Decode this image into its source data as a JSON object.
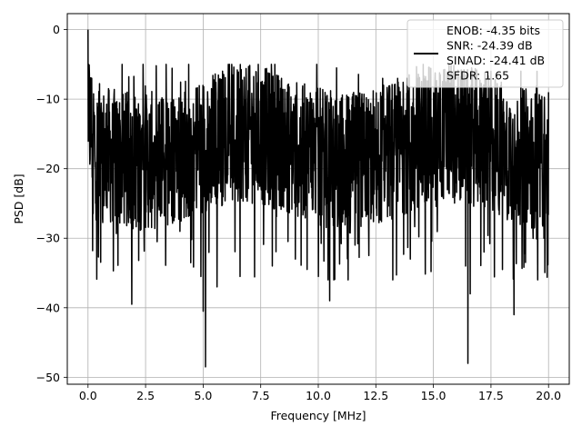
{
  "chart_data": {
    "type": "line",
    "xlabel": "Frequency [MHz]",
    "ylabel": "PSD [dB]",
    "xlim": [
      -0.9,
      20.9
    ],
    "ylim": [
      -51.0,
      2.3
    ],
    "xticks": [
      0.0,
      2.5,
      5.0,
      7.5,
      10.0,
      12.5,
      15.0,
      17.5,
      20.0
    ],
    "xtick_labels": [
      "0.0",
      "2.5",
      "5.0",
      "7.5",
      "10.0",
      "12.5",
      "15.0",
      "17.5",
      "20.0"
    ],
    "yticks": [
      0,
      -10,
      -20,
      -30,
      -40,
      -50
    ],
    "ytick_labels": [
      "0",
      "−10",
      "−20",
      "−30",
      "−40",
      "−50"
    ],
    "grid": true,
    "legend_position": "top-right",
    "legend_lines": [
      "ENOB: -4.35 bits",
      "SNR: -24.39 dB",
      "SINAD: -24.41 dB",
      "SFDR: 1.65"
    ],
    "series": [
      {
        "color": "#000000",
        "x_range": [
          0.0,
          20.0
        ],
        "samples": 2000,
        "description_of_values": "noise-like PSD trace",
        "values": [
          [
            0.0,
            0.0
          ],
          [
            0.04,
            -10.5
          ],
          [
            0.1,
            -14.0
          ],
          [
            0.2,
            -31.8
          ],
          [
            0.3,
            -18.0
          ],
          [
            0.38,
            -35.9
          ],
          [
            0.6,
            -13.5
          ],
          [
            1.1,
            -34.7
          ],
          [
            1.3,
            -33.9
          ],
          [
            1.4,
            -14.0
          ],
          [
            1.9,
            -39.5
          ],
          [
            2.2,
            -33.2
          ],
          [
            2.4,
            -9.5
          ],
          [
            3.0,
            -30.5
          ],
          [
            3.4,
            -10.0
          ],
          [
            4.2,
            -9.0
          ],
          [
            4.5,
            -30.2
          ],
          [
            4.9,
            -35.5
          ],
          [
            5.0,
            -40.5
          ],
          [
            5.1,
            -48.5
          ],
          [
            5.6,
            -37.0
          ],
          [
            5.7,
            -7.2
          ],
          [
            6.6,
            -35.5
          ],
          [
            7.4,
            -8.0
          ],
          [
            8.0,
            -34.0
          ],
          [
            8.4,
            -7.0
          ],
          [
            9.0,
            -33.0
          ],
          [
            10.0,
            -35.5
          ],
          [
            10.5,
            -39.0
          ],
          [
            10.8,
            -5.5
          ],
          [
            11.6,
            -31.0
          ],
          [
            12.2,
            -32.5
          ],
          [
            12.8,
            -7.0
          ],
          [
            14.0,
            -33.0
          ],
          [
            14.9,
            -34.8
          ],
          [
            15.3,
            -6.5
          ],
          [
            16.4,
            -34.0
          ],
          [
            16.5,
            -48.0
          ],
          [
            16.6,
            -38.0
          ],
          [
            17.2,
            -32.0
          ],
          [
            17.5,
            -6.0
          ],
          [
            18.0,
            -34.5
          ],
          [
            18.5,
            -41.0
          ],
          [
            19.0,
            -33.5
          ],
          [
            19.5,
            -6.0
          ],
          [
            19.8,
            -30.0
          ],
          [
            20.0,
            -9.0
          ]
        ]
      }
    ]
  }
}
